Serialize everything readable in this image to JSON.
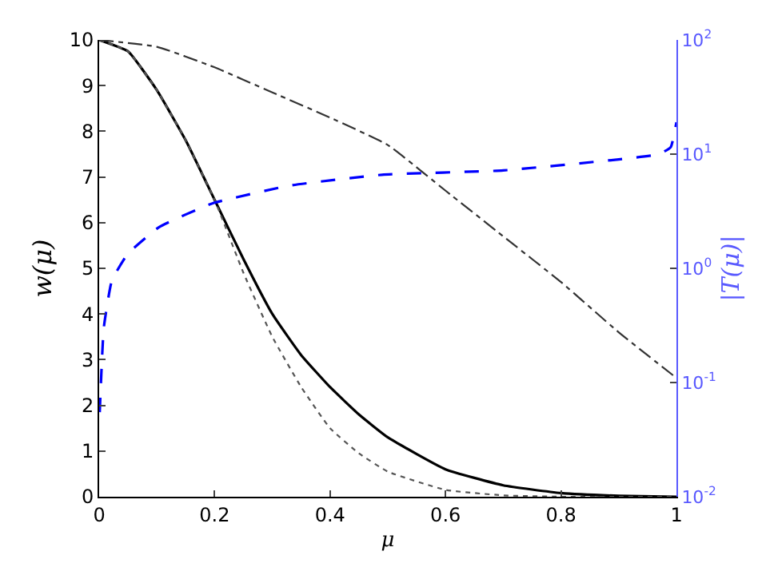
{
  "chart_data": {
    "type": "line",
    "xlabel": "μ",
    "ylabel": "w(μ)",
    "y2label": "|T(μ)|",
    "xlim": [
      0,
      1
    ],
    "xticks": [
      0,
      0.2,
      0.4,
      0.6,
      0.8,
      1
    ],
    "ylim": [
      0,
      10
    ],
    "yticks": [
      0,
      1,
      2,
      3,
      4,
      5,
      6,
      7,
      8,
      9,
      10
    ],
    "y2lim": [
      0.01,
      100
    ],
    "y2ticks": [
      {
        "value": 0.01,
        "label": "10$^{-2}$"
      },
      {
        "value": 0.1,
        "label": "10$^{-1}$"
      },
      {
        "value": 1,
        "label": "10$^{0}$"
      },
      {
        "value": 10,
        "label": "10$^{1}$"
      },
      {
        "value": 100,
        "label": "10$^{2}$"
      }
    ],
    "log": "y2",
    "marker": "none",
    "series": [
      {
        "color": "#000000",
        "line_style": "solid",
        "x": [
          0,
          0.05,
          0.1,
          0.15,
          0.2,
          0.25,
          0.3,
          0.35,
          0.4,
          0.45,
          0.5,
          0.6,
          0.7,
          0.8,
          0.9,
          1
        ],
        "values": [
          10,
          9.75,
          8.9,
          7.8,
          6.5,
          5.2,
          4.0,
          3.1,
          2.4,
          1.8,
          1.3,
          0.6,
          0.25,
          0.08,
          0.02,
          0
        ]
      },
      {
        "color": "#555555",
        "line_style": "dotted",
        "x": [
          0,
          0.05,
          0.1,
          0.15,
          0.2,
          0.25,
          0.3,
          0.35,
          0.4,
          0.45,
          0.5,
          0.6,
          0.7,
          0.8,
          0.9,
          1
        ],
        "values": [
          10,
          9.75,
          8.9,
          7.8,
          6.5,
          4.9,
          3.5,
          2.4,
          1.5,
          0.95,
          0.55,
          0.15,
          0.03,
          0,
          0,
          0
        ]
      },
      {
        "color": "#333333",
        "line_style": "dashdot",
        "x": [
          0,
          0.1,
          0.2,
          0.3,
          0.4,
          0.5,
          0.6,
          0.7,
          0.8,
          0.9,
          1
        ],
        "values": [
          10,
          9.85,
          9.4,
          8.85,
          8.3,
          7.7,
          6.7,
          5.7,
          4.7,
          3.6,
          2.6
        ]
      },
      {
        "color": "#0000ff",
        "line_style": "dashed",
        "axis": "y2",
        "x": [
          0.001,
          0.008,
          0.022,
          0.049,
          0.104,
          0.196,
          0.33,
          0.49,
          0.7,
          0.9,
          0.97,
          0.99,
          1
        ],
        "values": [
          0.055,
          0.3,
          0.78,
          1.33,
          2.3,
          3.7,
          5.3,
          6.6,
          7.2,
          9,
          10,
          11.5,
          19
        ]
      }
    ]
  }
}
